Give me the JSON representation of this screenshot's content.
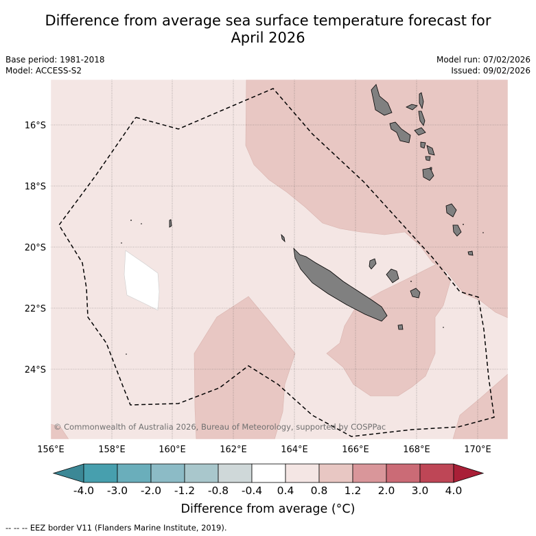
{
  "title_line1": "Difference from average sea surface temperature forecast for",
  "title_line2": "April 2026",
  "base_period": "Base period: 1981-2018",
  "model": "Model: ACCESS-S2",
  "model_run": "Model run: 07/02/2026",
  "issued": "Issued: 09/02/2026",
  "copyright": "© Commonwealth of Australia 2026, Bureau of Meteorology, supported by COSPPac",
  "lon_labels": [
    "156°E",
    "158°E",
    "160°E",
    "162°E",
    "164°E",
    "166°E",
    "168°E",
    "170°E"
  ],
  "lat_labels": [
    "16°S",
    "18°S",
    "20°S",
    "22°S",
    "24°S"
  ],
  "colorbar": {
    "label": "Difference from average (°C)",
    "ticks": [
      "-4.0",
      "-3.0",
      "-2.0",
      "-1.2",
      "-0.8",
      "-0.4",
      "0.4",
      "0.8",
      "1.2",
      "2.0",
      "3.0",
      "4.0"
    ],
    "colors": [
      "#479fae",
      "#6aaebb",
      "#8cbbc6",
      "#a9c7cc",
      "#cfd8d9",
      "#ffffff",
      "#f4e6e4",
      "#e8c7c3",
      "#d9969a",
      "#cb6b76",
      "#be4656"
    ],
    "under_color": "#3c8896",
    "over_color": "#a91f37"
  },
  "legend_note": "--  --  -- EEZ border V11 (Flanders Marine Institute, 2019).",
  "legend_dashes": "--  --  --",
  "legend_text": "EEZ border V11 (Flanders Marine Institute, 2019)."
}
